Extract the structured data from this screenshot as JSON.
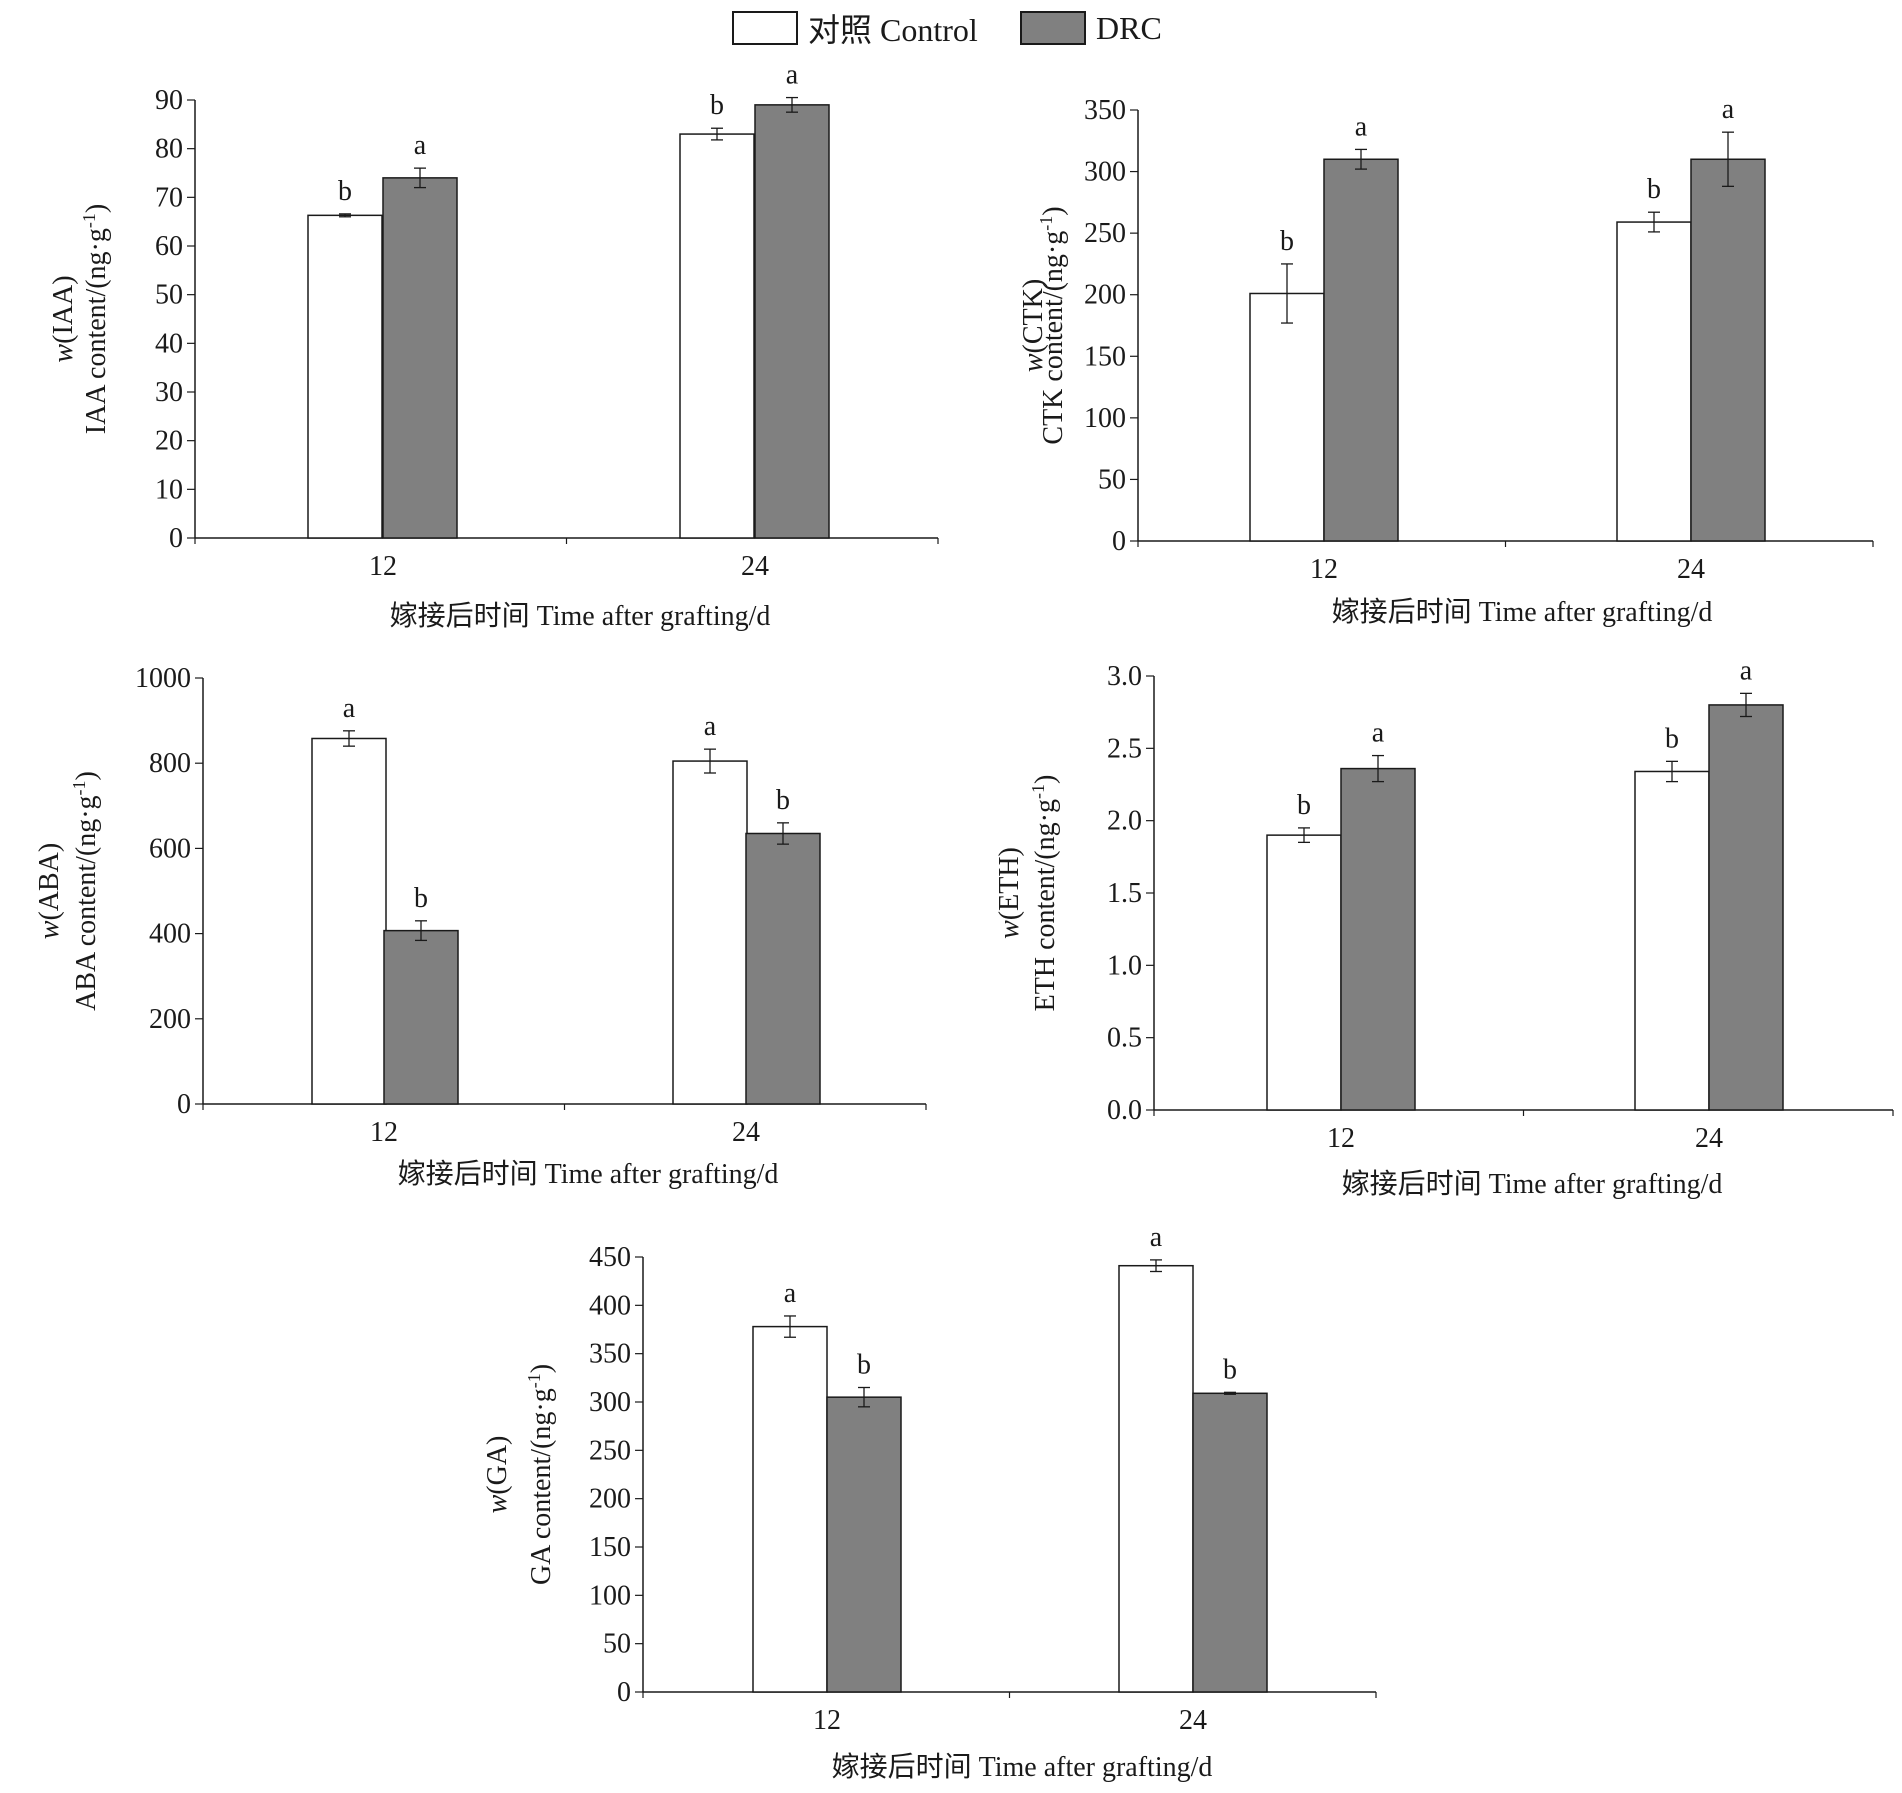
{
  "legend": {
    "control_label": "对照 Control",
    "drc_label": "DRC",
    "control_color": "#ffffff",
    "drc_color": "#808080"
  },
  "chart_data": [
    {
      "type": "bar",
      "categories": [
        "12",
        "24"
      ],
      "series": [
        {
          "name": "对照 Control",
          "values": [
            66.3,
            83
          ],
          "errors": [
            0.3,
            1.2
          ],
          "letters": [
            "b",
            "b"
          ]
        },
        {
          "name": "DRC",
          "values": [
            74,
            89
          ],
          "errors": [
            2.0,
            1.5
          ],
          "letters": [
            "a",
            "a"
          ]
        }
      ],
      "ylim": [
        0,
        90
      ],
      "yticks": [
        0,
        10,
        20,
        30,
        40,
        50,
        60,
        70,
        80,
        90
      ],
      "ylabel_var": "w",
      "ylabel_paren": "(IAA)",
      "ylabel_line2": "IAA content/(ng·g",
      "ylabel_sup": "-1",
      "ylabel_close": ")",
      "xlabel": "嫁接后时间 Time after grafting/d"
    },
    {
      "type": "bar",
      "categories": [
        "12",
        "24"
      ],
      "series": [
        {
          "name": "对照 Control",
          "values": [
            201,
            259
          ],
          "errors": [
            24,
            8
          ],
          "letters": [
            "b",
            "b"
          ]
        },
        {
          "name": "DRC",
          "values": [
            310,
            310
          ],
          "errors": [
            8,
            22
          ],
          "letters": [
            "a",
            "a"
          ]
        }
      ],
      "ylim": [
        0,
        350
      ],
      "yticks": [
        0,
        50,
        100,
        150,
        200,
        250,
        300,
        350
      ],
      "ylabel_var": "w",
      "ylabel_paren": "(CTK)",
      "ylabel_line2": "CTK content/(ng·g",
      "ylabel_sup": "-1",
      "ylabel_close": ")",
      "xlabel": "嫁接后时间 Time after grafting/d"
    },
    {
      "type": "bar",
      "categories": [
        "12",
        "24"
      ],
      "series": [
        {
          "name": "对照 Control",
          "values": [
            858,
            805
          ],
          "errors": [
            18,
            28
          ],
          "letters": [
            "a",
            "a"
          ]
        },
        {
          "name": "DRC",
          "values": [
            407,
            635
          ],
          "errors": [
            23,
            25
          ],
          "letters": [
            "b",
            "b"
          ]
        }
      ],
      "ylim": [
        0,
        1000
      ],
      "yticks": [
        0,
        200,
        400,
        600,
        800,
        1000
      ],
      "ylabel_var": "w",
      "ylabel_paren": "(ABA)",
      "ylabel_line2": "ABA content/(ng·g",
      "ylabel_sup": "-1",
      "ylabel_close": ")",
      "xlabel": "嫁接后时间 Time after grafting/d"
    },
    {
      "type": "bar",
      "categories": [
        "12",
        "24"
      ],
      "series": [
        {
          "name": "对照 Control",
          "values": [
            1.9,
            2.34
          ],
          "errors": [
            0.05,
            0.07
          ],
          "letters": [
            "b",
            "b"
          ]
        },
        {
          "name": "DRC",
          "values": [
            2.36,
            2.8
          ],
          "errors": [
            0.09,
            0.08
          ],
          "letters": [
            "a",
            "a"
          ]
        }
      ],
      "ylim": [
        0,
        3.0
      ],
      "yticks": [
        "0.0",
        "0.5",
        "1.0",
        "1.5",
        "2.0",
        "2.5",
        "3.0"
      ],
      "ylabel_var": "w",
      "ylabel_paren": "(ETH)",
      "ylabel_line2": "ETH content/(ng·g",
      "ylabel_sup": "-1",
      "ylabel_close": ")",
      "xlabel": "嫁接后时间 Time after grafting/d"
    },
    {
      "type": "bar",
      "categories": [
        "12",
        "24"
      ],
      "series": [
        {
          "name": "对照 Control",
          "values": [
            378,
            441
          ],
          "errors": [
            11,
            6
          ],
          "letters": [
            "a",
            "a"
          ]
        },
        {
          "name": "DRC",
          "values": [
            305,
            309
          ],
          "errors": [
            10,
            1
          ],
          "letters": [
            "b",
            "b"
          ]
        }
      ],
      "ylim": [
        0,
        450
      ],
      "yticks": [
        0,
        50,
        100,
        150,
        200,
        250,
        300,
        350,
        400,
        450
      ],
      "ylabel_var": "w",
      "ylabel_paren": "(GA)",
      "ylabel_line2": "GA content/(ng·g",
      "ylabel_sup": "-1",
      "ylabel_close": ")",
      "xlabel": "嫁接后时间 Time after grafting/d"
    }
  ]
}
